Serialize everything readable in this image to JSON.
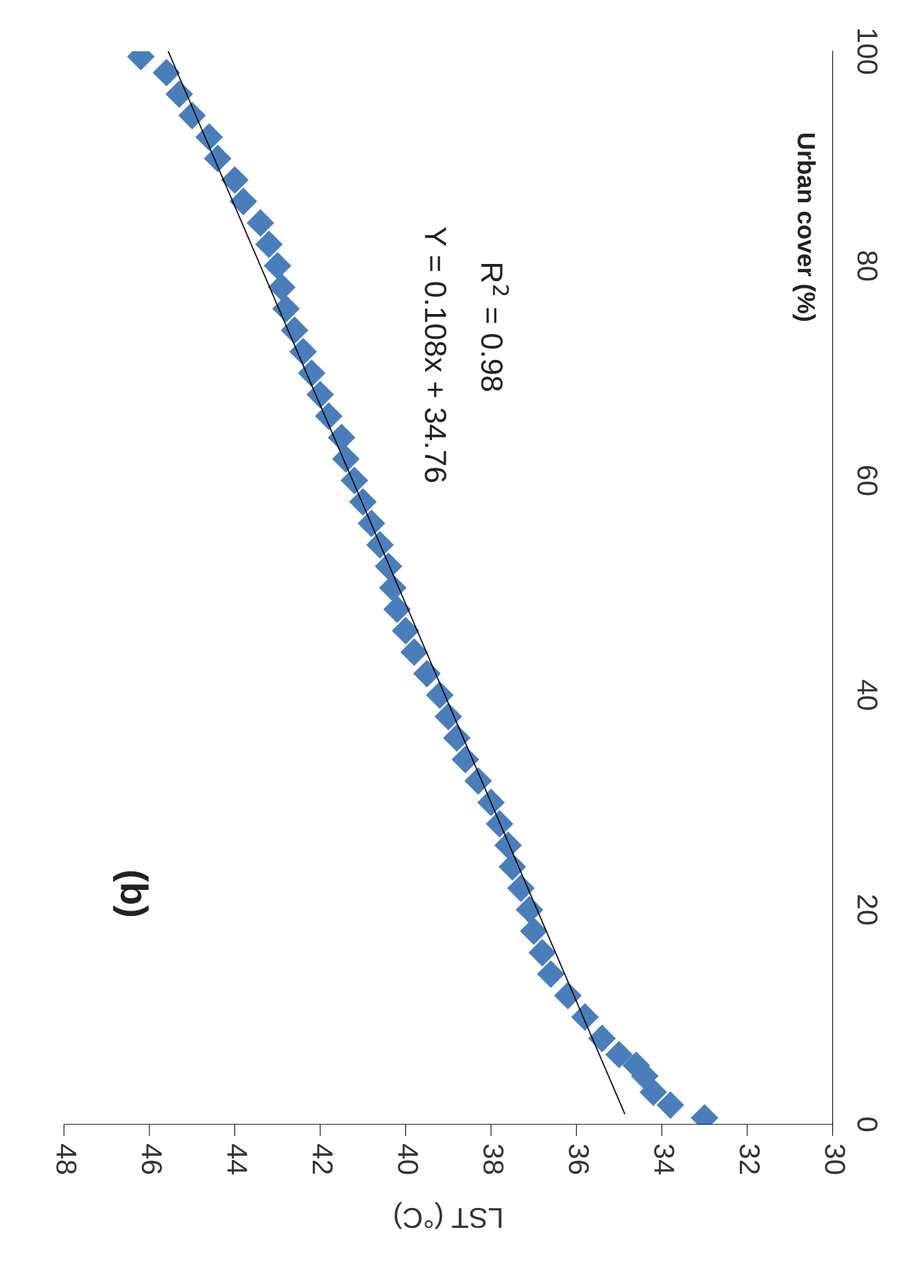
{
  "chart_data": {
    "type": "scatter",
    "xlabel": "LST (°C)",
    "ylabel": "Urban cover (%)",
    "xlim": [
      48,
      30
    ],
    "xticks": [
      30,
      32,
      34,
      36,
      38,
      40,
      42,
      44,
      46,
      48
    ],
    "ylim": [
      0,
      100
    ],
    "yticks": [
      0,
      20,
      40,
      60,
      80,
      100
    ],
    "grid": false,
    "legend": false,
    "annotations": [
      "(b)",
      "Y = 0.108x + 34.76",
      "R$^{2}$ = 0.98"
    ],
    "series": [
      {
        "color": "#4a7ebb",
        "marker": "diamond",
        "values": [
          0.6,
          1.8,
          3,
          4.5,
          5.5,
          6.5,
          8,
          10,
          12,
          14,
          16,
          18,
          20,
          22,
          24,
          26,
          28,
          30,
          32,
          34,
          36,
          38,
          40,
          42,
          44,
          46,
          48,
          50,
          52,
          54,
          56,
          58,
          60,
          62,
          64,
          66,
          68,
          70,
          72,
          74,
          76,
          78,
          80,
          82,
          84,
          86,
          88,
          90,
          92,
          94,
          96,
          98,
          99.5
        ],
        "x": [
          33.0,
          33.8,
          34.2,
          34.4,
          34.6,
          35.0,
          35.4,
          35.8,
          36.2,
          36.6,
          36.8,
          37.0,
          37.1,
          37.3,
          37.5,
          37.6,
          37.8,
          38.0,
          38.3,
          38.6,
          38.8,
          39.0,
          39.2,
          39.5,
          39.8,
          40.0,
          40.2,
          40.3,
          40.4,
          40.6,
          40.8,
          41.0,
          41.2,
          41.4,
          41.5,
          41.8,
          42.0,
          42.2,
          42.4,
          42.6,
          42.8,
          42.9,
          43.0,
          43.2,
          43.4,
          43.8,
          44.0,
          44.4,
          44.6,
          45.0,
          45.3,
          45.6,
          46.2
        ]
      },
      {
        "type": "line",
        "marker": "none",
        "color": "#000000",
        "values": [
          1,
          100
        ],
        "x": [
          34.87,
          45.56
        ]
      }
    ]
  }
}
